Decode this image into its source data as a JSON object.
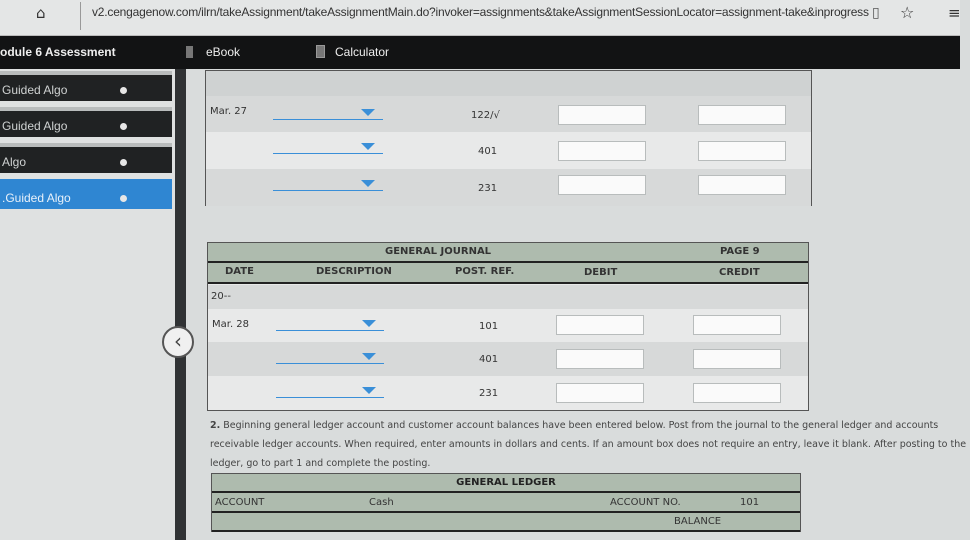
{
  "browser": {
    "url": "v2.cengagenow.com/ilrn/takeAssignment/takeAssignmentMain.do?invoker=assignments&takeAssignmentSessionLocator=assignment-take&inprogress"
  },
  "header": {
    "title": "odule 6 Assessment",
    "ebook": "eBook",
    "calculator": "Calculator"
  },
  "sidebar": {
    "items": [
      {
        "label": "Guided Algo"
      },
      {
        "label": "Guided Algo"
      },
      {
        "label": "Algo"
      },
      {
        "label": ".Guided Algo",
        "active": true
      }
    ]
  },
  "journal1": {
    "rows": [
      {
        "date": "Mar. 27",
        "ref": "122/√"
      },
      {
        "date": "",
        "ref": "401"
      },
      {
        "date": "",
        "ref": "231"
      }
    ]
  },
  "journal2": {
    "title": "GENERAL JOURNAL",
    "page": "PAGE 9",
    "columns": [
      "DATE",
      "DESCRIPTION",
      "POST. REF.",
      "DEBIT",
      "CREDIT"
    ],
    "year": "20--",
    "rows": [
      {
        "date": "Mar. 28",
        "ref": "101"
      },
      {
        "date": "",
        "ref": "401"
      },
      {
        "date": "",
        "ref": "231"
      }
    ]
  },
  "instructions": {
    "number": "2.",
    "text": " Beginning general ledger account and customer account balances have been entered below. Post from the journal to the general ledger and accounts receivable ledger accounts. When required, enter amounts in dollars and cents. If an amount box does not require an entry, leave it blank. After posting to the ledger, go to part 1 and complete the posting."
  },
  "ledger": {
    "title": "GENERAL LEDGER",
    "account_label": "ACCOUNT",
    "account": "Cash",
    "account_no_label": "ACCOUNT NO.",
    "account_no": "101",
    "balance_label": "BALANCE"
  }
}
